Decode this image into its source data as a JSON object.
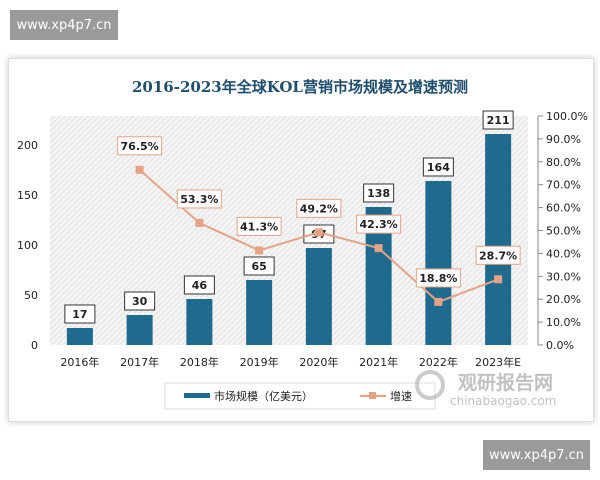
{
  "watermark_top": "www.xp4p7.cn",
  "watermark_bottom": "www.xp4p7.cn",
  "logo": {
    "cn": "观研报告网",
    "en": "chinabaogao.com"
  },
  "chart_data": {
    "type": "bar+line",
    "title": "2016-2023年全球KOL营销市场规模及增速预测",
    "categories": [
      "2016年",
      "2017年",
      "2018年",
      "2019年",
      "2020年",
      "2021年",
      "2022年",
      "2023年E"
    ],
    "series": [
      {
        "name": "市场规模（亿美元）",
        "type": "bar",
        "axis": "left",
        "color": "#1f6b8e",
        "values": [
          17,
          30,
          46,
          65,
          97,
          138,
          164,
          211
        ],
        "labels": [
          "17",
          "30",
          "46",
          "65",
          "97",
          "138",
          "164",
          "211"
        ]
      },
      {
        "name": "增速",
        "type": "line",
        "axis": "right",
        "color": "#e6a285",
        "values": [
          null,
          76.5,
          53.3,
          41.3,
          49.2,
          42.3,
          18.8,
          28.7
        ],
        "labels": [
          "",
          "76.5%",
          "53.3%",
          "41.3%",
          "49.2%",
          "42.3%",
          "18.8%",
          "28.7%"
        ]
      }
    ],
    "yleft": {
      "ticks": [
        "0",
        "50",
        "100",
        "150",
        "200"
      ],
      "tick_values": [
        0,
        50,
        100,
        150,
        200
      ],
      "ylim": [
        0,
        229
      ]
    },
    "yright": {
      "ticks": [
        "0.0%",
        "10.0%",
        "20.0%",
        "30.0%",
        "40.0%",
        "50.0%",
        "60.0%",
        "70.0%",
        "80.0%",
        "90.0%",
        "100.0%"
      ],
      "ylim": [
        0,
        100
      ]
    },
    "legend": "bottom",
    "grid": false
  }
}
